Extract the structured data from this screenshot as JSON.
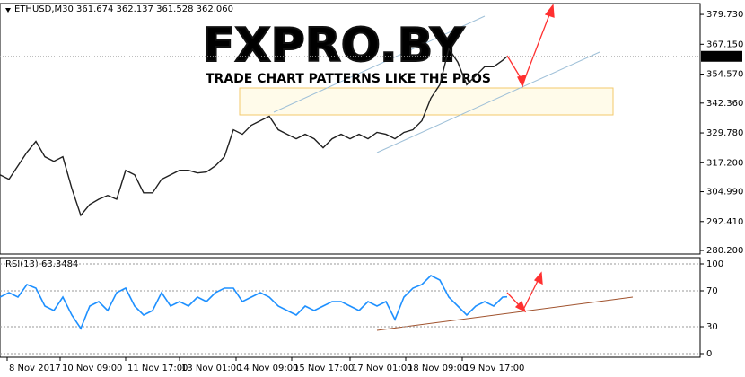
{
  "chart_data": [
    {
      "type": "line",
      "title": "ETHUSD,M30  361.674 362.137 361.528 362.060",
      "watermark": "FXPRO.BY",
      "watermark_subtitle": "TRADE CHART PATTERNS LIKE THE PROS",
      "x": [
        0,
        10,
        20,
        30,
        40,
        50,
        60,
        70,
        80,
        90,
        100,
        110,
        120,
        130,
        140,
        150,
        160,
        170,
        180,
        190,
        200,
        210,
        220,
        230,
        240,
        250,
        260,
        270,
        280,
        290,
        300,
        310,
        320,
        330,
        340,
        350,
        360,
        370,
        380,
        390,
        400,
        410,
        420,
        430,
        440,
        450,
        460,
        470,
        480,
        490,
        500,
        510,
        520,
        530,
        540,
        550,
        560,
        565
      ],
      "series": [
        {
          "name": "ETHUSD",
          "color": "#202020",
          "values": [
            312.1,
            310.2,
            315.9,
            321.6,
            326.2,
            319.7,
            317.8,
            319.7,
            306.4,
            295.0,
            299.6,
            301.8,
            303.4,
            301.8,
            314.0,
            312.1,
            304.5,
            304.5,
            310.2,
            312.1,
            314.0,
            314.0,
            312.9,
            313.3,
            315.9,
            319.7,
            331.1,
            329.2,
            333.0,
            334.9,
            336.8,
            331.1,
            329.2,
            327.3,
            329.2,
            327.3,
            323.5,
            327.3,
            329.2,
            327.3,
            329.2,
            327.3,
            330.0,
            329.2,
            327.3,
            330.0,
            331.1,
            334.9,
            344.4,
            350.1,
            365.3,
            359.6,
            350.1,
            353.9,
            357.7,
            357.7,
            360.4,
            362.06
          ]
        }
      ],
      "last_price": {
        "value": 362.06,
        "label": "362.060"
      },
      "xlim": [
        0,
        780
      ],
      "ylim": [
        278.7,
        384.3
      ],
      "yticks": [
        {
          "value": 379.73,
          "label": "379.730"
        },
        {
          "value": 367.15,
          "label": "367.150"
        },
        {
          "value": 354.57,
          "label": "354.570"
        },
        {
          "value": 342.36,
          "label": "342.360"
        },
        {
          "value": 329.78,
          "label": "329.780"
        },
        {
          "value": 317.2,
          "label": "317.200"
        },
        {
          "value": 304.99,
          "label": "304.990"
        },
        {
          "value": 292.41,
          "label": "292.410"
        },
        {
          "value": 280.2,
          "label": "280.200"
        }
      ],
      "grid": false
    },
    {
      "type": "line",
      "title": "RSI(13) 63.3484",
      "x": [
        0,
        10,
        20,
        30,
        40,
        50,
        60,
        70,
        80,
        90,
        100,
        110,
        120,
        130,
        140,
        150,
        160,
        170,
        180,
        190,
        200,
        210,
        220,
        230,
        240,
        250,
        260,
        270,
        280,
        290,
        300,
        310,
        320,
        330,
        340,
        350,
        360,
        370,
        380,
        390,
        400,
        410,
        420,
        430,
        440,
        450,
        460,
        470,
        480,
        490,
        500,
        510,
        520,
        530,
        540,
        550,
        560,
        565
      ],
      "series": [
        {
          "name": "RSI(13)",
          "color": "#1e90ff",
          "values": [
            63,
            68,
            63,
            77,
            73,
            53,
            48,
            63,
            43,
            28,
            53,
            58,
            48,
            68,
            73,
            53,
            43,
            48,
            68,
            53,
            58,
            53,
            63,
            58,
            68,
            73,
            73,
            58,
            63,
            68,
            63,
            53,
            48,
            43,
            53,
            48,
            53,
            58,
            58,
            53,
            48,
            58,
            53,
            58,
            38,
            63,
            73,
            77,
            87,
            82,
            63,
            53,
            43,
            53,
            58,
            53,
            63,
            63.35
          ]
        }
      ],
      "xlim": [
        0,
        780
      ],
      "ylim": [
        -4,
        107
      ],
      "yticks": [
        0,
        30,
        70,
        100
      ],
      "xticks": [
        {
          "value": 8,
          "label": "8 Nov 2017"
        },
        {
          "value": 67,
          "label": "10 Nov 09:00"
        },
        {
          "value": 140,
          "label": "11 Nov 17:00"
        },
        {
          "value": 200,
          "label": "13 Nov 01:00"
        },
        {
          "value": 263,
          "label": "14 Nov 09:00"
        },
        {
          "value": 325,
          "label": "15 Nov 17:00"
        },
        {
          "value": 390,
          "label": "17 Nov 01:00"
        },
        {
          "value": 452,
          "label": "18 Nov 09:00"
        },
        {
          "value": 515,
          "label": "19 Nov 17:00"
        }
      ],
      "grid": true
    }
  ]
}
